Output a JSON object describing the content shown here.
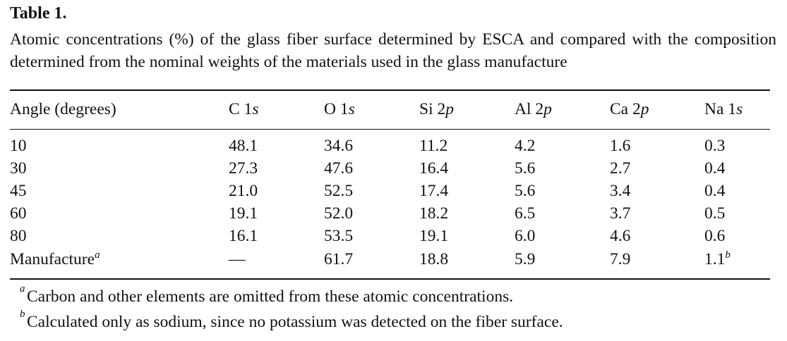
{
  "table": {
    "title": "Table 1.",
    "caption": "Atomic concentrations (%) of the glass fiber surface determined by ESCA and compared with the composition determined from the nominal weights of the materials used in the glass manufacture",
    "headers": [
      {
        "main": "Angle (degrees)",
        "ital": ""
      },
      {
        "main": "C 1",
        "ital": "s"
      },
      {
        "main": "O 1",
        "ital": "s"
      },
      {
        "main": "Si 2",
        "ital": "p"
      },
      {
        "main": "Al 2",
        "ital": "p"
      },
      {
        "main": "Ca 2",
        "ital": "p"
      },
      {
        "main": "Na 1",
        "ital": "s"
      }
    ],
    "rows": [
      {
        "label": "10",
        "values": [
          "48.1",
          "34.6",
          "11.2",
          "4.2",
          "1.6",
          "0.3"
        ]
      },
      {
        "label": "30",
        "values": [
          "27.3",
          "47.6",
          "16.4",
          "5.6",
          "2.7",
          "0.4"
        ]
      },
      {
        "label": "45",
        "values": [
          "21.0",
          "52.5",
          "17.4",
          "5.6",
          "3.4",
          "0.4"
        ]
      },
      {
        "label": "60",
        "values": [
          "19.1",
          "52.0",
          "18.2",
          "6.5",
          "3.7",
          "0.5"
        ]
      },
      {
        "label": "80",
        "values": [
          "16.1",
          "53.5",
          "19.1",
          "6.0",
          "4.6",
          "0.6"
        ]
      },
      {
        "label": "Manufacture",
        "label_mark": "a",
        "values": [
          "—",
          "61.7",
          "18.8",
          "5.9",
          "7.9",
          "1.1"
        ],
        "last_mark": "b"
      }
    ]
  },
  "footnotes": [
    {
      "mark": "a",
      "text": "Carbon and other elements are omitted from these atomic concentrations."
    },
    {
      "mark": "b",
      "text": "Calculated only as sodium, since no potassium was detected on the fiber surface."
    }
  ]
}
